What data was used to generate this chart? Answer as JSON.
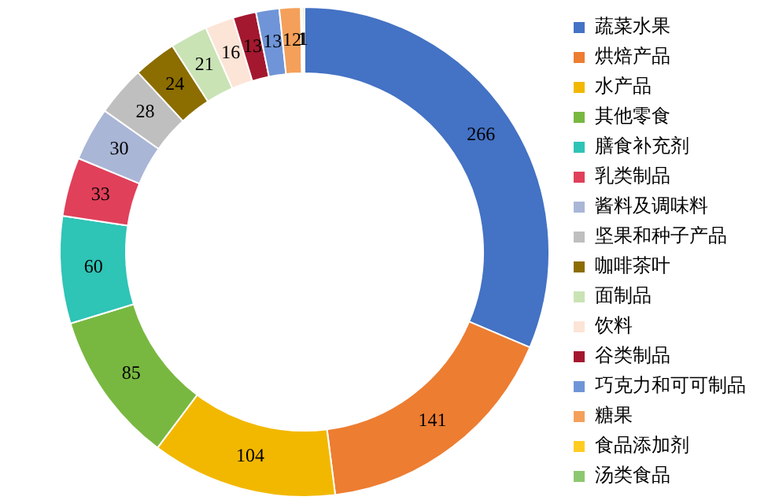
{
  "chart_data": {
    "type": "donut",
    "categories": [
      "蔬菜水果",
      "烘焙产品",
      "水产品",
      "其他零食",
      "膳食补充剂",
      "乳类制品",
      "酱料及调味料",
      "坚果和种子产品",
      "咖啡茶叶",
      "面制品",
      "饮料",
      "谷类制品",
      "巧克力和可可制品",
      "糖果",
      "食品添加剂",
      "汤类食品"
    ],
    "values": [
      266,
      141,
      104,
      85,
      60,
      33,
      30,
      28,
      24,
      21,
      16,
      13,
      13,
      12,
      1,
      1
    ],
    "colors": [
      "#4472c4",
      "#ed7d31",
      "#f2b800",
      "#78b840",
      "#2ec4b6",
      "#e0405a",
      "#a9b6d6",
      "#bfbfbf",
      "#8c6d00",
      "#c9e3b5",
      "#fce4d6",
      "#a3182f",
      "#6f95d8",
      "#f4a05a",
      "#ffcc22",
      "#8cc870"
    ],
    "data_labels": true,
    "legend": "right"
  }
}
